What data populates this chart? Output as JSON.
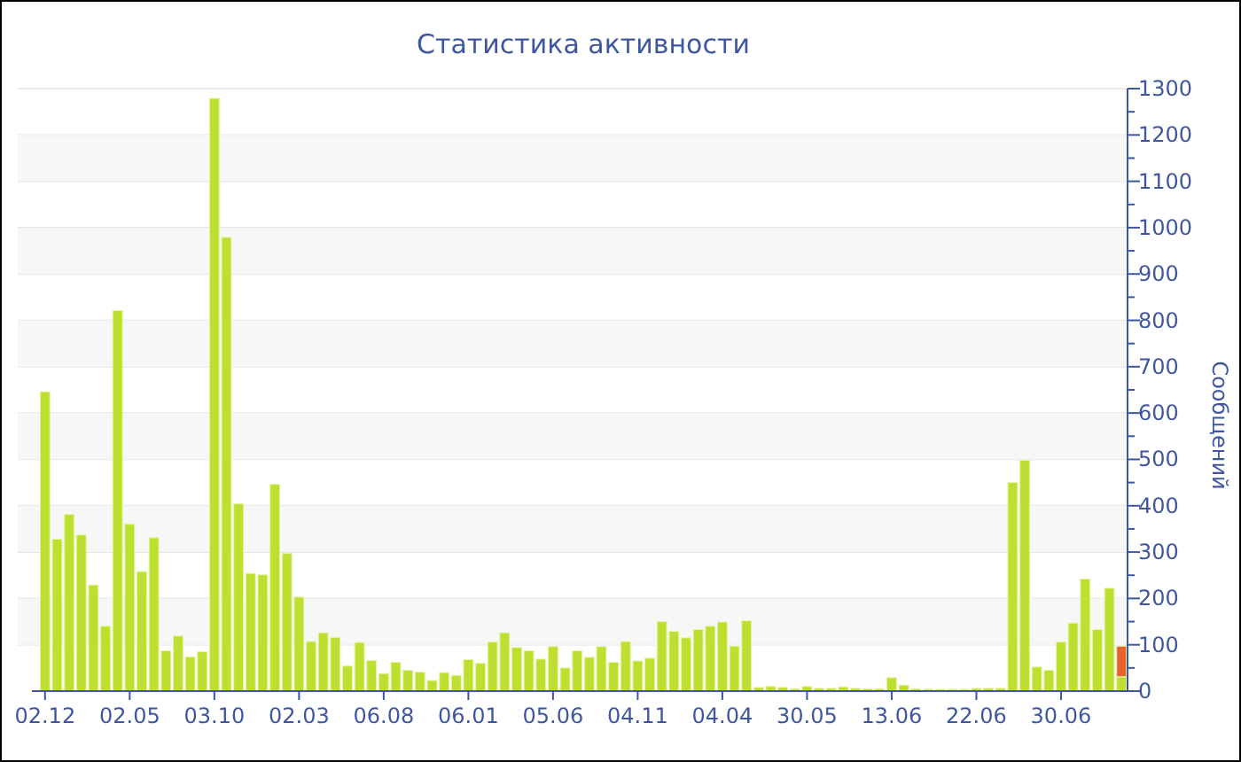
{
  "chart_data": {
    "type": "bar",
    "title": "Статистика активности",
    "ylabel": "Сообщений",
    "categories": [
      "02.12",
      null,
      null,
      null,
      null,
      null,
      null,
      "02.05",
      null,
      null,
      null,
      null,
      null,
      null,
      "03.10",
      null,
      null,
      null,
      null,
      null,
      null,
      "02.03",
      null,
      null,
      null,
      null,
      null,
      null,
      "06.08",
      null,
      null,
      null,
      null,
      null,
      null,
      "06.01",
      null,
      null,
      null,
      null,
      null,
      null,
      "05.06",
      null,
      null,
      null,
      null,
      null,
      null,
      "04.11",
      null,
      null,
      null,
      null,
      null,
      null,
      "04.04",
      null,
      null,
      null,
      null,
      null,
      null,
      "30.05",
      null,
      null,
      null,
      null,
      null,
      null,
      "13.06",
      null,
      null,
      null,
      null,
      null,
      null,
      "22.06",
      null,
      null,
      null,
      null,
      null,
      null,
      "30.06",
      null,
      null,
      null,
      null,
      null
    ],
    "series": [
      {
        "color": "#bde030",
        "values": [
          646,
          328,
          381,
          337,
          229,
          140,
          821,
          360,
          258,
          331,
          87,
          119,
          74,
          85,
          1279,
          979,
          404,
          254,
          251,
          446,
          297,
          203,
          107,
          126,
          116,
          54,
          105,
          66,
          38,
          62,
          45,
          41,
          23,
          40,
          34,
          68,
          60,
          106,
          126,
          94,
          87,
          69,
          96,
          50,
          87,
          73,
          96,
          62,
          107,
          65,
          71,
          150,
          129,
          115,
          133,
          140,
          149,
          97,
          152,
          8,
          10,
          8,
          5,
          10,
          6,
          6,
          9,
          6,
          5,
          5,
          29,
          13,
          5,
          4,
          4,
          4,
          4,
          6,
          6,
          6,
          450,
          498,
          52,
          45,
          106,
          147,
          242,
          133,
          222,
          31
        ]
      },
      {
        "color": "#e8622a",
        "values": [
          null,
          null,
          null,
          null,
          null,
          null,
          null,
          null,
          null,
          null,
          null,
          null,
          null,
          null,
          null,
          null,
          null,
          null,
          null,
          null,
          null,
          null,
          null,
          null,
          null,
          null,
          null,
          null,
          null,
          null,
          null,
          null,
          null,
          null,
          null,
          null,
          null,
          null,
          null,
          null,
          null,
          null,
          null,
          null,
          null,
          null,
          null,
          null,
          null,
          null,
          null,
          null,
          null,
          null,
          null,
          null,
          null,
          null,
          null,
          null,
          null,
          null,
          null,
          null,
          null,
          null,
          null,
          null,
          null,
          null,
          null,
          null,
          null,
          null,
          null,
          null,
          null,
          null,
          null,
          null,
          null,
          null,
          null,
          null,
          null,
          null,
          null,
          null,
          null,
          66
        ]
      }
    ],
    "stacked": true,
    "ylim": [
      0,
      1300
    ],
    "yticks": [
      0,
      100,
      200,
      300,
      400,
      500,
      600,
      700,
      800,
      900,
      1000,
      1100,
      1200,
      1300
    ],
    "grid": "y"
  }
}
